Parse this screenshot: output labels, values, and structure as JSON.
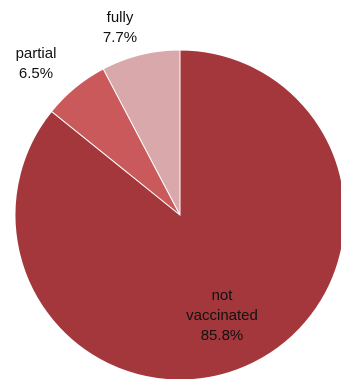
{
  "chart_data": {
    "type": "pie",
    "start_angle_deg": 0,
    "direction": "clockwise",
    "slices": [
      {
        "label_lines": [
          "not",
          "vaccinated"
        ],
        "value_text": "85.8%",
        "value": 85.8,
        "color": "#a3373b"
      },
      {
        "label_lines": [
          "partial"
        ],
        "value_text": "6.5%",
        "value": 6.5,
        "color": "#c9595a"
      },
      {
        "label_lines": [
          "fully"
        ],
        "value_text": "7.7%",
        "value": 7.7,
        "color": "#d8a8aa"
      }
    ],
    "legend": "none"
  }
}
